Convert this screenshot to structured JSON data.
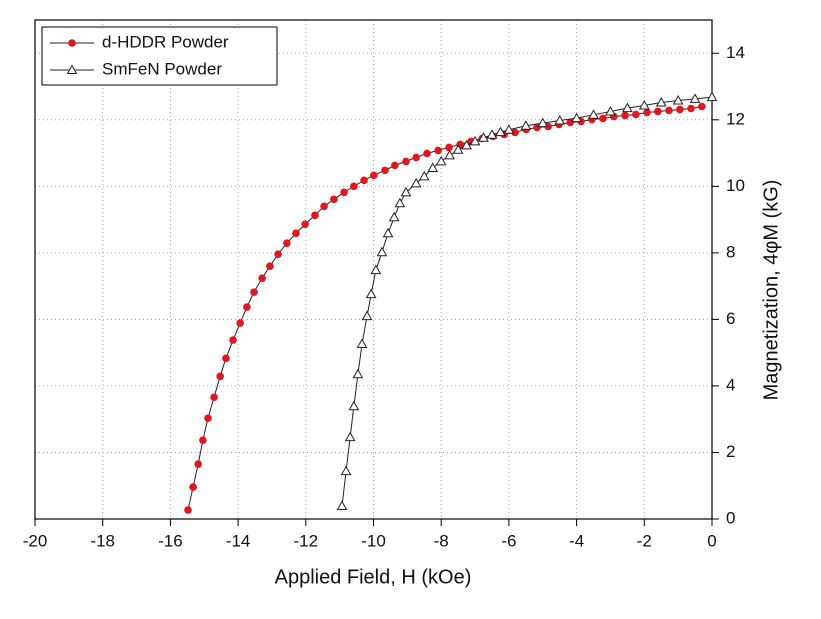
{
  "chart_data": {
    "type": "line",
    "xlabel": "Applied Field, H (kOe)",
    "ylabel": "Magnetization, 4φM (kG)",
    "xlim": [
      -20,
      0
    ],
    "xticks": [
      -20,
      -18,
      -16,
      -14,
      -12,
      -10,
      -8,
      -6,
      -4,
      -2,
      0
    ],
    "ylim": [
      0,
      15
    ],
    "yticks": [
      0,
      2,
      4,
      6,
      8,
      10,
      12,
      14
    ],
    "y_axis_side": "right",
    "grid": true,
    "legend": "upper left",
    "series": [
      {
        "name": "d-HDDR Powder",
        "color": "#e8141c",
        "marker": "circle",
        "x": [
          -15.48,
          -15.33,
          -15.18,
          -15.04,
          -14.89,
          -14.71,
          -14.53,
          -14.36,
          -14.15,
          -13.94,
          -13.74,
          -13.53,
          -13.29,
          -13.06,
          -12.82,
          -12.56,
          -12.29,
          -12.02,
          -11.73,
          -11.46,
          -11.17,
          -10.87,
          -10.58,
          -10.28,
          -9.99,
          -9.66,
          -9.37,
          -9.04,
          -8.74,
          -8.42,
          -8.09,
          -7.77,
          -7.44,
          -7.12,
          -6.79,
          -6.47,
          -6.14,
          -5.82,
          -5.49,
          -5.17,
          -4.84,
          -4.52,
          -4.19,
          -3.87,
          -3.55,
          -3.22,
          -2.9,
          -2.57,
          -2.25,
          -1.92,
          -1.6,
          -1.27,
          -0.95,
          -0.62,
          -0.3
        ],
        "values": [
          0.27,
          0.96,
          1.65,
          2.37,
          3.03,
          3.66,
          4.29,
          4.83,
          5.38,
          5.89,
          6.37,
          6.82,
          7.24,
          7.6,
          7.96,
          8.29,
          8.59,
          8.86,
          9.13,
          9.4,
          9.61,
          9.82,
          10.0,
          10.18,
          10.33,
          10.48,
          10.63,
          10.75,
          10.87,
          10.99,
          11.08,
          11.17,
          11.26,
          11.35,
          11.44,
          11.5,
          11.56,
          11.62,
          11.71,
          11.77,
          11.8,
          11.86,
          11.92,
          11.95,
          12.01,
          12.04,
          12.1,
          12.13,
          12.16,
          12.22,
          12.25,
          12.28,
          12.31,
          12.34,
          12.4
        ]
      },
      {
        "name": "SmFeN Powder",
        "color": "#222222",
        "marker": "triangle",
        "x": [
          -10.93,
          -10.81,
          -10.69,
          -10.58,
          -10.46,
          -10.34,
          -10.19,
          -10.07,
          -9.93,
          -9.75,
          -9.57,
          -9.39,
          -9.22,
          -9.04,
          -8.74,
          -8.5,
          -8.25,
          -8.0,
          -7.75,
          -7.5,
          -7.25,
          -7.0,
          -6.75,
          -6.5,
          -6.25,
          -6.0,
          -5.5,
          -5.0,
          -4.5,
          -4.0,
          -3.5,
          -3.0,
          -2.5,
          -2.0,
          -1.5,
          -1.0,
          -0.5,
          0.0
        ],
        "values": [
          0.39,
          1.44,
          2.46,
          3.39,
          4.35,
          5.26,
          6.1,
          6.76,
          7.48,
          8.02,
          8.59,
          9.07,
          9.49,
          9.82,
          10.09,
          10.3,
          10.55,
          10.75,
          10.93,
          11.1,
          11.23,
          11.35,
          11.46,
          11.55,
          11.63,
          11.7,
          11.82,
          11.9,
          11.98,
          12.05,
          12.15,
          12.25,
          12.35,
          12.43,
          12.52,
          12.58,
          12.63,
          12.68
        ]
      }
    ]
  }
}
